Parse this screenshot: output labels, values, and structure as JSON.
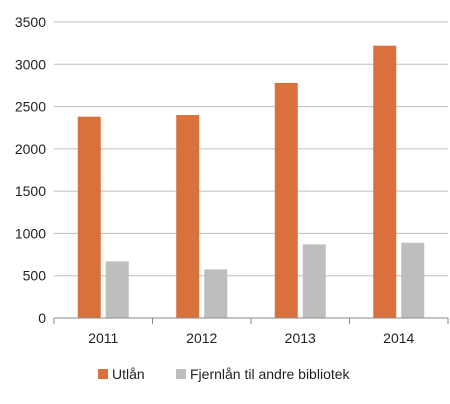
{
  "chart_data": {
    "type": "bar",
    "title": "",
    "xlabel": "",
    "ylabel": "",
    "categories": [
      "2011",
      "2012",
      "2013",
      "2014"
    ],
    "series": [
      {
        "name": "Utlån",
        "values": [
          2380,
          2400,
          2780,
          3220
        ],
        "color": "#d9713c"
      },
      {
        "name": "Fjernlån til andre bibliotek",
        "values": [
          670,
          575,
          870,
          890
        ],
        "color": "#bcbec0"
      }
    ],
    "ylim": [
      0,
      3500
    ],
    "yticks": [
      "0",
      "500",
      "1000",
      "1500",
      "2000",
      "2500",
      "3000",
      "3500"
    ],
    "grid": true,
    "legend_position": "bottom"
  }
}
